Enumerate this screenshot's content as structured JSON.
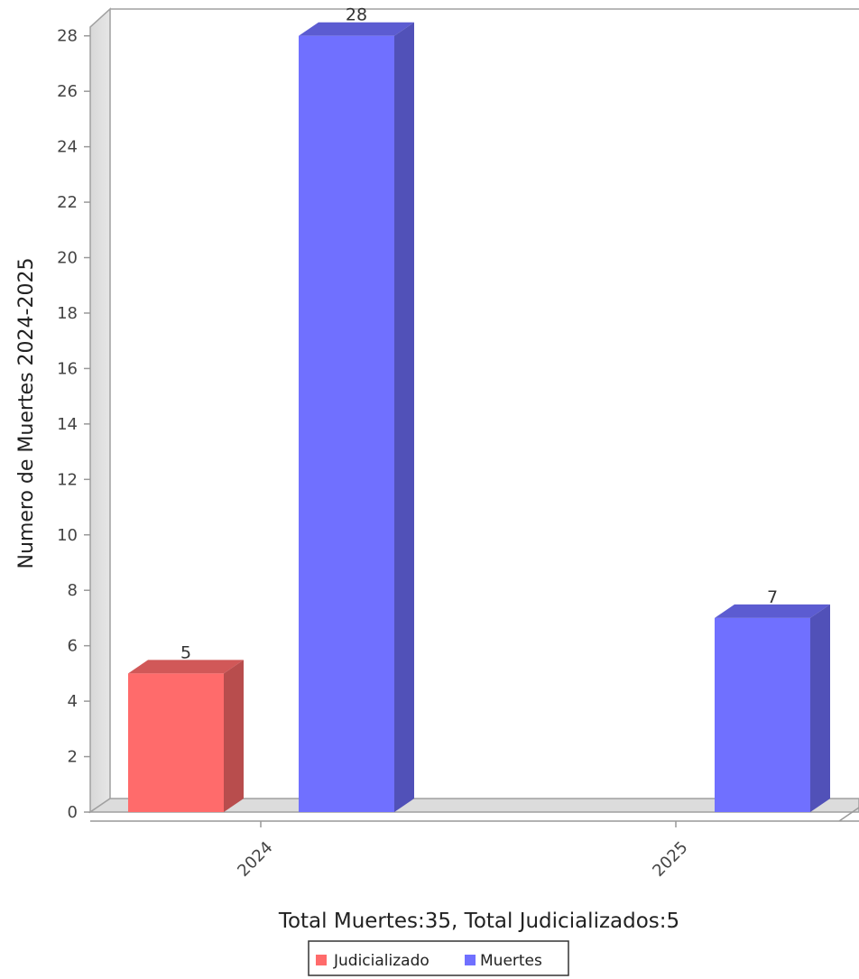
{
  "chart_data": {
    "type": "bar",
    "categories": [
      "2024",
      "2025"
    ],
    "series": [
      {
        "name": "Judicializado",
        "values": [
          5,
          0
        ],
        "color": "#ff6b6b"
      },
      {
        "name": "Muertes",
        "values": [
          28,
          7
        ],
        "color": "#7070ff"
      }
    ],
    "data_labels": [
      [
        "5",
        ""
      ],
      [
        "28",
        "7"
      ]
    ],
    "ylabel": "Numero de Muertes 2024-2025",
    "xlabel": "Total Muertes:35, Total Judicializados:5",
    "ylim": [
      0,
      29
    ],
    "yticks": [
      0,
      2,
      4,
      6,
      8,
      10,
      12,
      14,
      16,
      18,
      20,
      22,
      24,
      26,
      28
    ],
    "grid": false,
    "legend_position": "bottom",
    "style": "3d"
  }
}
